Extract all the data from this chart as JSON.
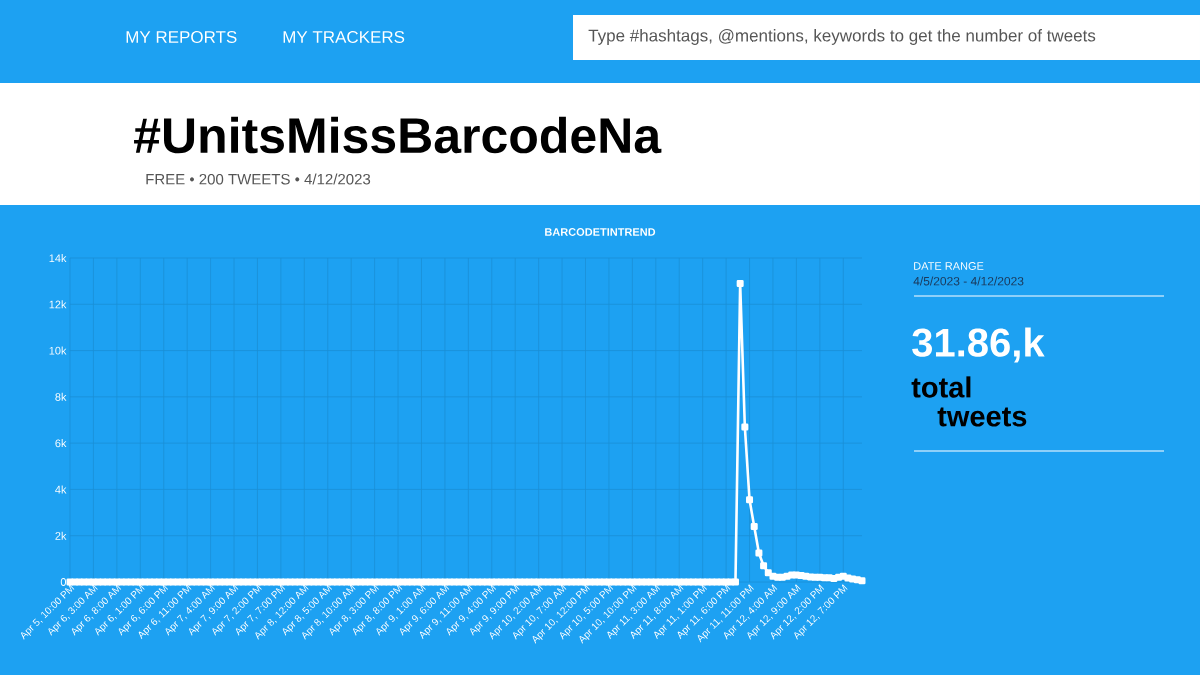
{
  "chart_data": {
    "type": "line",
    "title": "BARCODETINTREND",
    "categories": [
      "Apr 5, 10:00 PM",
      null,
      null,
      null,
      null,
      "Apr 6, 3:00 AM",
      null,
      null,
      null,
      null,
      "Apr 6, 8:00 AM",
      null,
      null,
      null,
      null,
      "Apr 6, 1:00 PM",
      null,
      null,
      null,
      null,
      "Apr 6, 6:00 PM",
      null,
      null,
      null,
      null,
      "Apr 6, 11:00 PM",
      null,
      null,
      null,
      null,
      "Apr 7, 4:00 AM",
      null,
      null,
      null,
      null,
      "Apr 7, 9:00 AM",
      null,
      null,
      null,
      null,
      "Apr 7, 2:00 PM",
      null,
      null,
      null,
      null,
      "Apr 7, 7:00 PM",
      null,
      null,
      null,
      null,
      "Apr 8, 12:00 AM",
      null,
      null,
      null,
      null,
      "Apr 8, 5:00 AM",
      null,
      null,
      null,
      null,
      "Apr 8, 10:00 AM",
      null,
      null,
      null,
      null,
      "Apr 8, 3:00 PM",
      null,
      null,
      null,
      null,
      "Apr 8, 8:00 PM",
      null,
      null,
      null,
      null,
      "Apr 9, 1:00 AM",
      null,
      null,
      null,
      null,
      "Apr 9, 6:00 AM",
      null,
      null,
      null,
      null,
      "Apr 9, 11:00 AM",
      null,
      null,
      null,
      null,
      "Apr 9, 4:00 PM",
      null,
      null,
      null,
      null,
      "Apr 9, 9:00 PM",
      null,
      null,
      null,
      null,
      "Apr 10, 2:00 AM",
      null,
      null,
      null,
      null,
      "Apr 10, 7:00 AM",
      null,
      null,
      null,
      null,
      "Apr 10, 12:00 PM",
      null,
      null,
      null,
      null,
      "Apr 10, 5:00 PM",
      null,
      null,
      null,
      null,
      "Apr 10, 10:00 PM",
      null,
      null,
      null,
      null,
      "Apr 11, 3:00 AM",
      null,
      null,
      null,
      null,
      "Apr 11, 8:00 AM",
      null,
      null,
      null,
      null,
      "Apr 11, 1:00 PM",
      null,
      null,
      null,
      null,
      "Apr 11, 6:00 PM",
      null,
      null,
      null,
      null,
      "Apr 11, 11:00 PM",
      null,
      null,
      null,
      null,
      "Apr 12, 4:00 AM",
      null,
      null,
      null,
      null,
      "Apr 12, 9:00 AM",
      null,
      null,
      null,
      null,
      "Apr 12, 2:00 PM",
      null,
      null,
      null,
      null,
      "Apr 12, 7:00 PM",
      null,
      null,
      null,
      null
    ],
    "values": [
      0,
      0,
      0,
      0,
      0,
      0,
      0,
      0,
      0,
      0,
      0,
      0,
      0,
      0,
      0,
      0,
      0,
      0,
      0,
      0,
      0,
      0,
      0,
      0,
      0,
      0,
      0,
      0,
      0,
      0,
      0,
      0,
      0,
      0,
      0,
      0,
      0,
      0,
      0,
      0,
      0,
      0,
      0,
      0,
      0,
      0,
      0,
      0,
      0,
      0,
      0,
      0,
      0,
      0,
      0,
      0,
      0,
      0,
      0,
      0,
      0,
      0,
      0,
      0,
      0,
      0,
      0,
      0,
      0,
      0,
      0,
      0,
      0,
      0,
      0,
      0,
      0,
      0,
      0,
      0,
      0,
      0,
      0,
      0,
      0,
      0,
      0,
      0,
      0,
      0,
      0,
      0,
      0,
      0,
      0,
      0,
      0,
      0,
      0,
      0,
      0,
      0,
      0,
      0,
      0,
      0,
      0,
      0,
      0,
      0,
      0,
      0,
      0,
      0,
      0,
      0,
      0,
      0,
      0,
      0,
      0,
      0,
      0,
      0,
      0,
      0,
      0,
      0,
      0,
      0,
      0,
      0,
      0,
      0,
      0,
      0,
      0,
      0,
      0,
      0,
      0,
      0,
      0,
      12900,
      6700,
      3550,
      2400,
      1250,
      700,
      400,
      250,
      200,
      200,
      250,
      300,
      300,
      280,
      250,
      220,
      200,
      200,
      180,
      180,
      150,
      200,
      250,
      170,
      130,
      100,
      50
    ],
    "color": "#ffffff",
    "marker": "square",
    "line_style": "solid",
    "grid": true,
    "ylim": [
      0,
      14000
    ],
    "yticks": [
      0,
      {
        "value": 2000,
        "label": "2k"
      },
      {
        "value": 4000,
        "label": "4k"
      },
      {
        "value": 6000,
        "label": "6k"
      },
      {
        "value": 8000,
        "label": "8k"
      },
      {
        "value": 10000,
        "label": "10k"
      },
      {
        "value": 12000,
        "label": "12k"
      },
      {
        "value": 14000,
        "label": "14k"
      }
    ],
    "annotations": [
      "MY REPORTS",
      "MY TRACKERS",
      "Type #hashtags, @mentions, keywords to get the number of tweets",
      "#UnitsMissBarcodeNa",
      "FREE • 200 TWEETS • 4/12/2023",
      "DATE RANGE",
      "4/5/2023 - 4/12/2023",
      "31.86,k",
      "total",
      "tweets"
    ]
  }
}
